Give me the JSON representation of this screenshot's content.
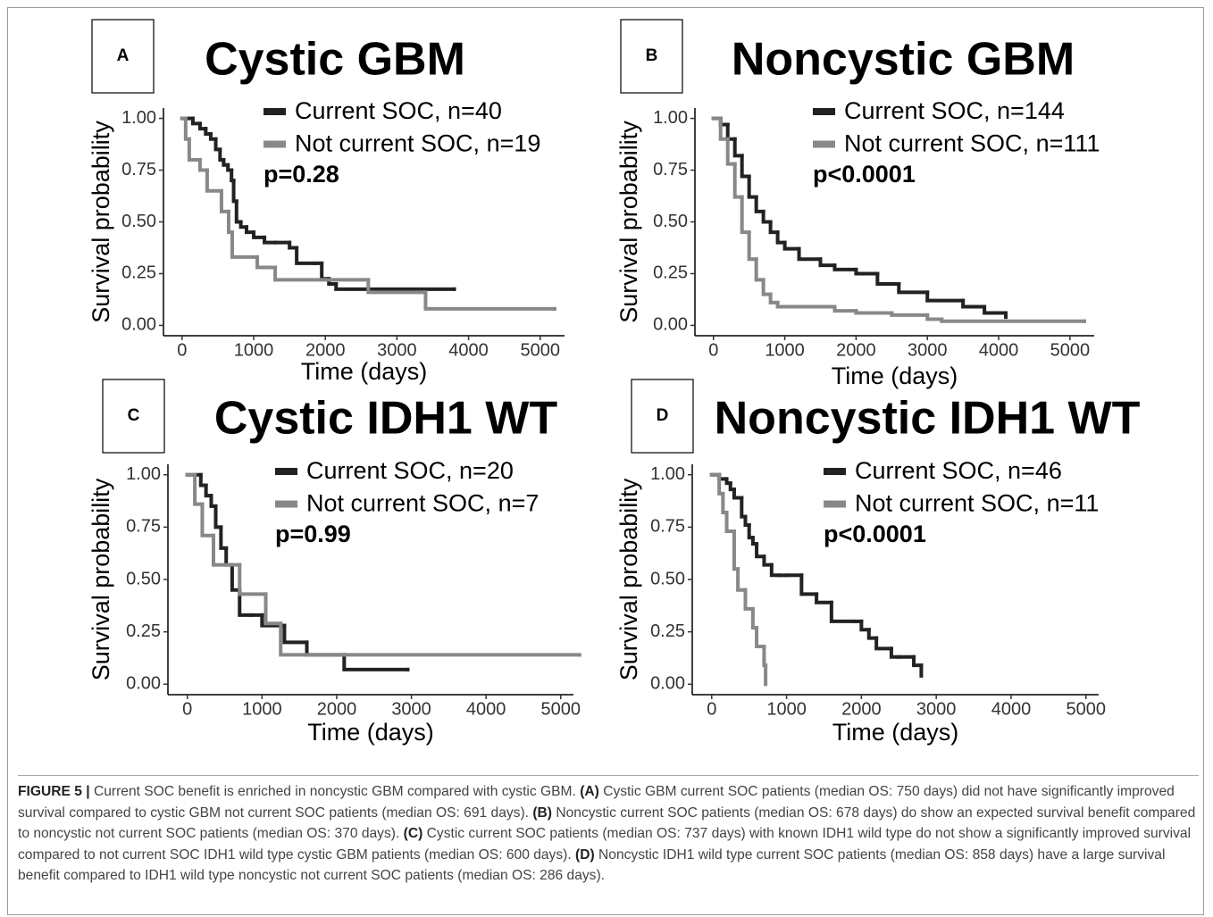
{
  "chart_data": [
    {
      "type": "line",
      "step": true,
      "panel": "A",
      "title": "Cystic GBM",
      "ylabel": "Survival probability",
      "xlabel": "Time (days)",
      "annotation": "p=0.28",
      "xlim": [
        -260,
        5340
      ],
      "ylim": [
        -0.05,
        1.05
      ],
      "xticks": [
        0,
        1000,
        2000,
        3000,
        4000,
        5000
      ],
      "yticks": [
        {
          "value": 0,
          "label": "0.00"
        },
        {
          "value": 0.25,
          "label": "0.25"
        },
        {
          "value": 0.5,
          "label": "0.50"
        },
        {
          "value": 0.75,
          "label": "0.75"
        },
        {
          "value": 1,
          "label": "1.00"
        }
      ],
      "series": [
        {
          "name": "Current SOC, n=40",
          "color": "#222222",
          "x": [
            0,
            150,
            250,
            330,
            400,
            470,
            530,
            580,
            640,
            690,
            720,
            760,
            820,
            900,
            1000,
            1150,
            1300,
            1500,
            1600,
            1850,
            1950,
            2050,
            2150,
            3800
          ],
          "values": [
            1,
            0.975,
            0.95,
            0.925,
            0.9,
            0.85,
            0.8,
            0.775,
            0.75,
            0.7,
            0.6,
            0.5,
            0.475,
            0.45,
            0.425,
            0.4,
            0.4,
            0.375,
            0.3,
            0.3,
            0.225,
            0.2,
            0.175,
            0.175
          ]
        },
        {
          "name": "Not current SOC, n=19",
          "color": "#888888",
          "x": [
            0,
            50,
            100,
            250,
            350,
            550,
            650,
            700,
            1050,
            1300,
            2600,
            3400,
            5200
          ],
          "values": [
            1,
            0.9,
            0.8,
            0.75,
            0.65,
            0.55,
            0.45,
            0.33,
            0.28,
            0.22,
            0.16,
            0.08,
            0.08
          ]
        }
      ]
    },
    {
      "type": "line",
      "step": true,
      "panel": "B",
      "title": "Noncystic GBM",
      "ylabel": "Survival probability",
      "xlabel": "Time (days)",
      "annotation": "p<0.0001",
      "xlim": [
        -260,
        5340
      ],
      "ylim": [
        -0.05,
        1.05
      ],
      "xticks": [
        0,
        1000,
        2000,
        3000,
        4000,
        5000
      ],
      "yticks": [
        {
          "value": 0,
          "label": "0.00"
        },
        {
          "value": 0.25,
          "label": "0.25"
        },
        {
          "value": 0.5,
          "label": "0.50"
        },
        {
          "value": 0.75,
          "label": "0.75"
        },
        {
          "value": 1,
          "label": "1.00"
        }
      ],
      "series": [
        {
          "name": "Current SOC, n=144",
          "color": "#222222",
          "x": [
            0,
            100,
            200,
            300,
            400,
            500,
            600,
            700,
            800,
            900,
            1000,
            1200,
            1500,
            1700,
            2000,
            2300,
            2600,
            3000,
            3500,
            3800,
            4100
          ],
          "values": [
            1,
            0.97,
            0.9,
            0.82,
            0.72,
            0.62,
            0.55,
            0.5,
            0.45,
            0.4,
            0.37,
            0.32,
            0.29,
            0.27,
            0.25,
            0.2,
            0.16,
            0.12,
            0.09,
            0.06,
            0.04
          ]
        },
        {
          "name": "Not current SOC, n=111",
          "color": "#888888",
          "x": [
            0,
            100,
            200,
            300,
            400,
            500,
            600,
            700,
            800,
            900,
            1200,
            1700,
            2000,
            2500,
            3000,
            3200,
            5200
          ],
          "values": [
            1,
            0.9,
            0.78,
            0.62,
            0.45,
            0.32,
            0.22,
            0.15,
            0.11,
            0.09,
            0.09,
            0.07,
            0.06,
            0.05,
            0.03,
            0.02,
            0.02
          ]
        }
      ]
    },
    {
      "type": "line",
      "step": true,
      "panel": "C",
      "title": "Cystic IDH1 WT",
      "ylabel": "Survival probability",
      "xlabel": "Time (days)",
      "annotation": "p=0.99",
      "xlim": [
        -260,
        5170
      ],
      "ylim": [
        -0.05,
        1.05
      ],
      "xticks": [
        0,
        1000,
        2000,
        3000,
        4000,
        5000
      ],
      "yticks": [
        {
          "value": 0,
          "label": "0.00"
        },
        {
          "value": 0.25,
          "label": "0.25"
        },
        {
          "value": 0.5,
          "label": "0.50"
        },
        {
          "value": 0.75,
          "label": "0.75"
        },
        {
          "value": 1,
          "label": "1.00"
        }
      ],
      "series": [
        {
          "name": "Current SOC, n=20",
          "color": "#222222",
          "x": [
            0,
            180,
            250,
            320,
            380,
            450,
            520,
            600,
            700,
            850,
            1000,
            1300,
            1600,
            2100,
            2950
          ],
          "values": [
            1,
            0.95,
            0.9,
            0.85,
            0.75,
            0.65,
            0.57,
            0.45,
            0.33,
            0.33,
            0.28,
            0.2,
            0.14,
            0.07,
            0.07
          ]
        },
        {
          "name": "Not current SOC, n=7",
          "color": "#888888",
          "x": [
            0,
            100,
            200,
            350,
            550,
            700,
            1050,
            1250,
            5250
          ],
          "values": [
            1,
            0.86,
            0.71,
            0.57,
            0.57,
            0.43,
            0.29,
            0.14,
            0.14
          ]
        }
      ]
    },
    {
      "type": "line",
      "step": true,
      "panel": "D",
      "title": "Noncystic IDH1 WT",
      "ylabel": "Survival probability",
      "xlabel": "Time (days)",
      "annotation": "p<0.0001",
      "xlim": [
        -260,
        5170
      ],
      "ylim": [
        -0.05,
        1.05
      ],
      "xticks": [
        0,
        1000,
        2000,
        3000,
        4000,
        5000
      ],
      "yticks": [
        {
          "value": 0,
          "label": "0.00"
        },
        {
          "value": 0.25,
          "label": "0.25"
        },
        {
          "value": 0.5,
          "label": "0.50"
        },
        {
          "value": 0.75,
          "label": "0.75"
        },
        {
          "value": 1,
          "label": "1.00"
        }
      ],
      "series": [
        {
          "name": "Current SOC, n=46",
          "color": "#222222",
          "x": [
            0,
            100,
            200,
            250,
            300,
            400,
            450,
            500,
            550,
            600,
            700,
            800,
            900,
            1000,
            1200,
            1400,
            1600,
            1900,
            2000,
            2100,
            2200,
            2400,
            2500,
            2700,
            2800
          ],
          "values": [
            1,
            0.98,
            0.96,
            0.93,
            0.89,
            0.8,
            0.76,
            0.7,
            0.67,
            0.61,
            0.57,
            0.52,
            0.52,
            0.52,
            0.43,
            0.39,
            0.3,
            0.3,
            0.26,
            0.22,
            0.17,
            0.13,
            0.13,
            0.09,
            0.04
          ]
        },
        {
          "name": "Not current SOC, n=11",
          "color": "#888888",
          "x": [
            0,
            100,
            150,
            200,
            300,
            350,
            450,
            550,
            600,
            700,
            720
          ],
          "values": [
            1,
            0.91,
            0.82,
            0.73,
            0.55,
            0.45,
            0.36,
            0.27,
            0.18,
            0.09,
            0
          ]
        }
      ]
    }
  ],
  "caption": {
    "segments": [
      {
        "text": "FIGURE 5 |",
        "bold": true
      },
      {
        "text": " Current SOC benefit is enriched in noncystic GBM compared with cystic GBM. ",
        "bold": false
      },
      {
        "text": "(A)",
        "bold": true
      },
      {
        "text": " Cystic GBM current SOC patients (median OS: 750 days) did not have significantly improved survival compared to cystic GBM not current SOC patients (median OS: 691 days). ",
        "bold": false
      },
      {
        "text": "(B)",
        "bold": true
      },
      {
        "text": " Noncystic current SOC patients (median OS: 678 days) do show an expected survival benefit compared to noncystic not current SOC patients (median OS: 370 days). ",
        "bold": false
      },
      {
        "text": "(C)",
        "bold": true
      },
      {
        "text": " Cystic current SOC patients (median OS: 737 days) with known IDH1 wild type do not show a significantly improved survival compared to not current SOC IDH1 wild type cystic GBM patients (median OS: 600 days). ",
        "bold": false
      },
      {
        "text": "(D)",
        "bold": true
      },
      {
        "text": " Noncystic IDH1 wild type current SOC patients (median OS: 858 days) have a large survival benefit compared to IDH1 wild type noncystic not current SOC patients (median OS: 286 days).",
        "bold": false
      }
    ]
  }
}
